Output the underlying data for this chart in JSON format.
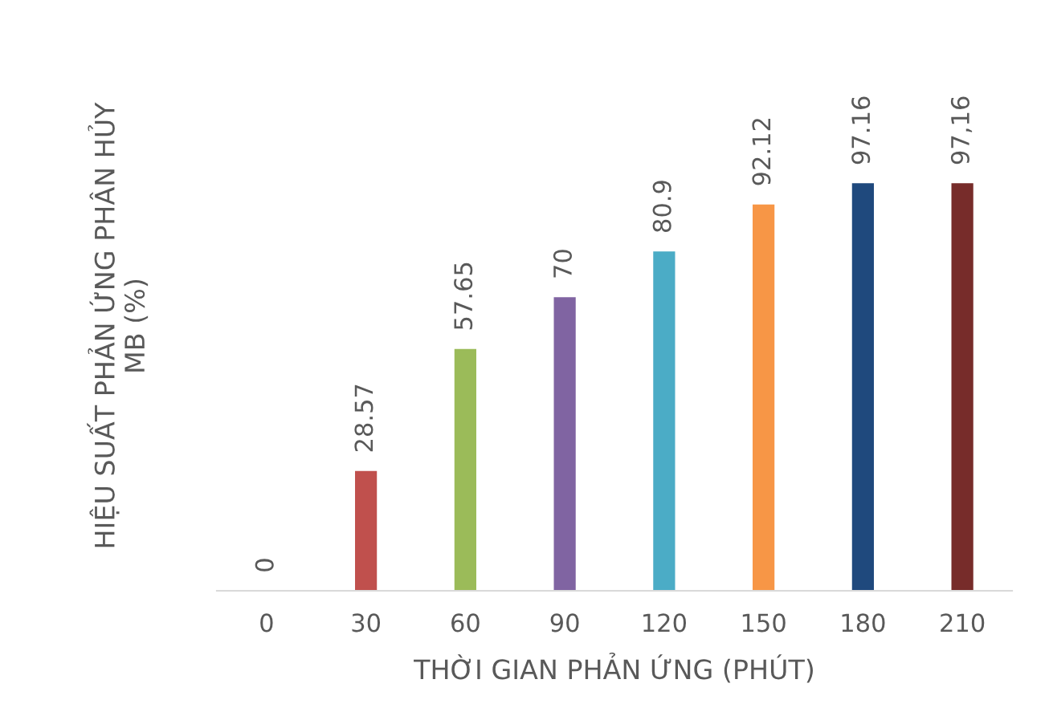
{
  "chart_data": {
    "type": "bar",
    "xlabel": "THỜI GIAN PHẢN ỨNG (PHÚT)",
    "ylabel": "HIỆU SUẤT PHẢN ỨNG PHÂN HỦY\nMB (%)",
    "categories": [
      "0",
      "30",
      "60",
      "90",
      "120",
      "150",
      "180",
      "210"
    ],
    "values": [
      0,
      28.57,
      57.65,
      70,
      80.9,
      92.12,
      97.16,
      97.16
    ],
    "value_labels": [
      "0",
      "28.57",
      "57.65",
      "70",
      "80.9",
      "92.12",
      "97.16",
      "97,16"
    ],
    "colors": [
      "#4f81bd",
      "#c0504d",
      "#9bbb59",
      "#8064a2",
      "#4bacc6",
      "#f79646",
      "#1f497d",
      "#772c2a"
    ],
    "relative": false,
    "grid": false,
    "legend": false
  }
}
